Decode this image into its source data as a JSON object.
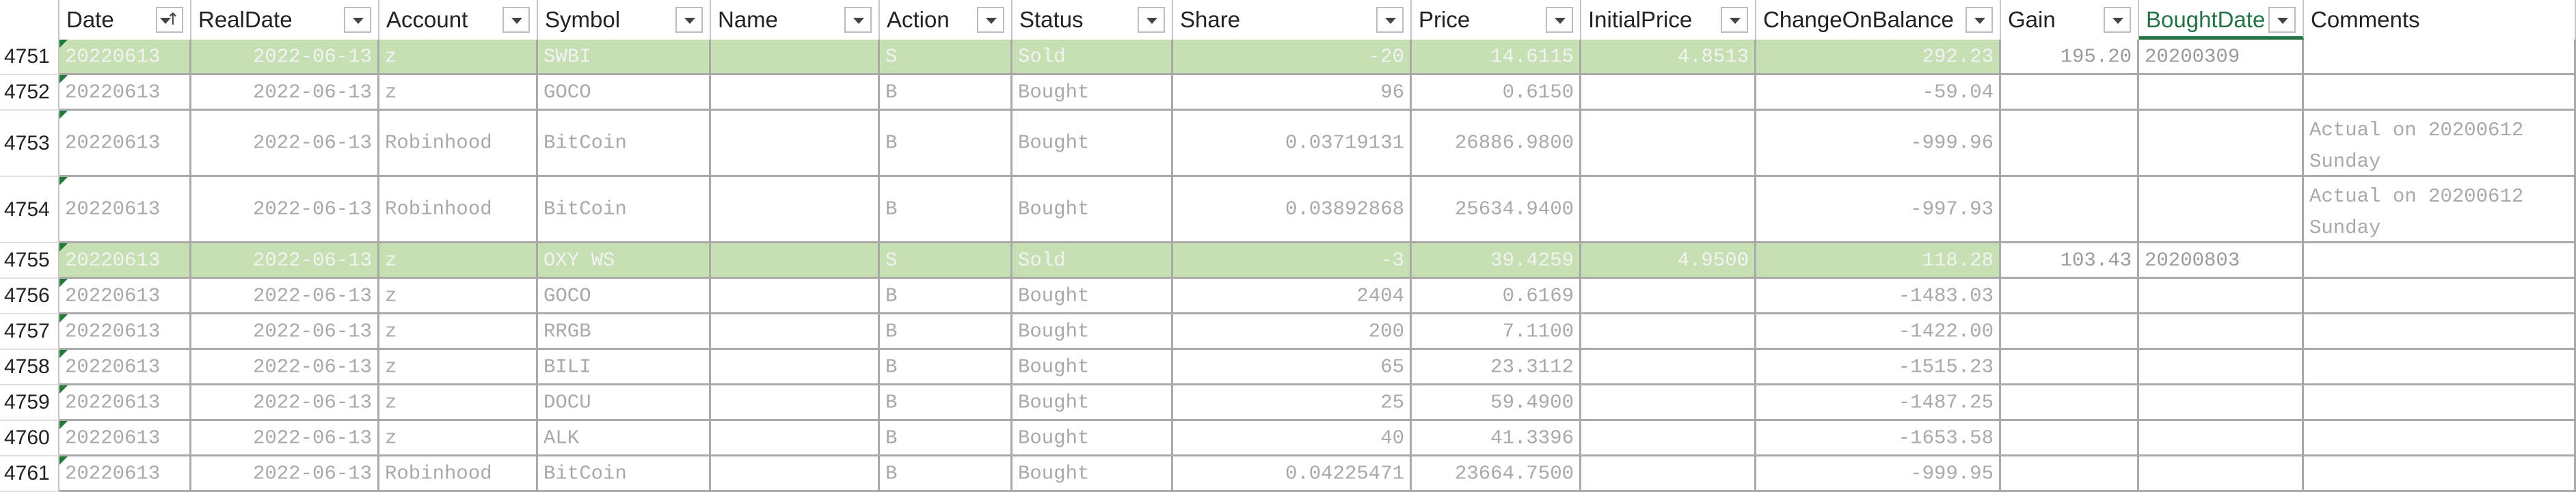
{
  "headers": [
    {
      "key": "date",
      "label": "Date",
      "sorted": true
    },
    {
      "key": "realdate",
      "label": "RealDate"
    },
    {
      "key": "account",
      "label": "Account"
    },
    {
      "key": "symbol",
      "label": "Symbol"
    },
    {
      "key": "name",
      "label": "Name"
    },
    {
      "key": "action",
      "label": "Action"
    },
    {
      "key": "status",
      "label": "Status"
    },
    {
      "key": "share",
      "label": "Share"
    },
    {
      "key": "price",
      "label": "Price"
    },
    {
      "key": "initialprice",
      "label": "InitialPrice"
    },
    {
      "key": "changeonbalance",
      "label": "ChangeOnBalance"
    },
    {
      "key": "gain",
      "label": "Gain"
    },
    {
      "key": "boughtdate",
      "label": "BoughtDate",
      "highlight": true
    },
    {
      "key": "comments",
      "label": "Comments",
      "nofilter": true
    }
  ],
  "rows": [
    {
      "num": "4751",
      "green": true,
      "date": "20220613",
      "realdate": "2022-06-13",
      "account": "z",
      "symbol": "SWBI",
      "name": "",
      "action": "S",
      "status": "Sold",
      "share": "-20",
      "price": "14.6115",
      "initialprice": "4.8513",
      "changeonbalance": "292.23",
      "gain": "195.20",
      "boughtdate": "20200309",
      "comments": ""
    },
    {
      "num": "4752",
      "date": "20220613",
      "realdate": "2022-06-13",
      "account": "z",
      "symbol": "GOCO",
      "name": "",
      "action": "B",
      "status": "Bought",
      "share": "96",
      "price": "0.6150",
      "initialprice": "",
      "changeonbalance": "-59.04",
      "gain": "",
      "boughtdate": "",
      "comments": ""
    },
    {
      "num": "4753",
      "tall": true,
      "date": "20220613",
      "realdate": "2022-06-13",
      "account": "Robinhood",
      "symbol": "BitCoin",
      "name": "",
      "action": "B",
      "status": "Bought",
      "share": "0.03719131",
      "price": "26886.9800",
      "initialprice": "",
      "changeonbalance": "-999.96",
      "gain": "",
      "boughtdate": "",
      "comments": "Actual on 20200612 Sunday"
    },
    {
      "num": "4754",
      "tall": true,
      "date": "20220613",
      "realdate": "2022-06-13",
      "account": "Robinhood",
      "symbol": "BitCoin",
      "name": "",
      "action": "B",
      "status": "Bought",
      "share": "0.03892868",
      "price": "25634.9400",
      "initialprice": "",
      "changeonbalance": "-997.93",
      "gain": "",
      "boughtdate": "",
      "comments": "Actual on 20200612 Sunday"
    },
    {
      "num": "4755",
      "green": true,
      "date": "20220613",
      "realdate": "2022-06-13",
      "account": "z",
      "symbol": "OXY WS",
      "name": "",
      "action": "S",
      "status": "Sold",
      "share": "-3",
      "price": "39.4259",
      "initialprice": "4.9500",
      "changeonbalance": "118.28",
      "gain": "103.43",
      "boughtdate": "20200803",
      "comments": ""
    },
    {
      "num": "4756",
      "date": "20220613",
      "realdate": "2022-06-13",
      "account": "z",
      "symbol": "GOCO",
      "name": "",
      "action": "B",
      "status": "Bought",
      "share": "2404",
      "price": "0.6169",
      "initialprice": "",
      "changeonbalance": "-1483.03",
      "gain": "",
      "boughtdate": "",
      "comments": ""
    },
    {
      "num": "4757",
      "date": "20220613",
      "realdate": "2022-06-13",
      "account": "z",
      "symbol": "RRGB",
      "name": "",
      "action": "B",
      "status": "Bought",
      "share": "200",
      "price": "7.1100",
      "initialprice": "",
      "changeonbalance": "-1422.00",
      "gain": "",
      "boughtdate": "",
      "comments": ""
    },
    {
      "num": "4758",
      "date": "20220613",
      "realdate": "2022-06-13",
      "account": "z",
      "symbol": "BILI",
      "name": "",
      "action": "B",
      "status": "Bought",
      "share": "65",
      "price": "23.3112",
      "initialprice": "",
      "changeonbalance": "-1515.23",
      "gain": "",
      "boughtdate": "",
      "comments": ""
    },
    {
      "num": "4759",
      "date": "20220613",
      "realdate": "2022-06-13",
      "account": "z",
      "symbol": "DOCU",
      "name": "",
      "action": "B",
      "status": "Bought",
      "share": "25",
      "price": "59.4900",
      "initialprice": "",
      "changeonbalance": "-1487.25",
      "gain": "",
      "boughtdate": "",
      "comments": ""
    },
    {
      "num": "4760",
      "date": "20220613",
      "realdate": "2022-06-13",
      "account": "z",
      "symbol": "ALK",
      "name": "",
      "action": "B",
      "status": "Bought",
      "share": "40",
      "price": "41.3396",
      "initialprice": "",
      "changeonbalance": "-1653.58",
      "gain": "",
      "boughtdate": "",
      "comments": ""
    },
    {
      "num": "4761",
      "date": "20220613",
      "realdate": "2022-06-13",
      "account": "Robinhood",
      "symbol": "BitCoin",
      "name": "",
      "action": "B",
      "status": "Bought",
      "share": "0.04225471",
      "price": "23664.7500",
      "initialprice": "",
      "changeonbalance": "-999.95",
      "gain": "",
      "boughtdate": "",
      "comments": ""
    }
  ]
}
